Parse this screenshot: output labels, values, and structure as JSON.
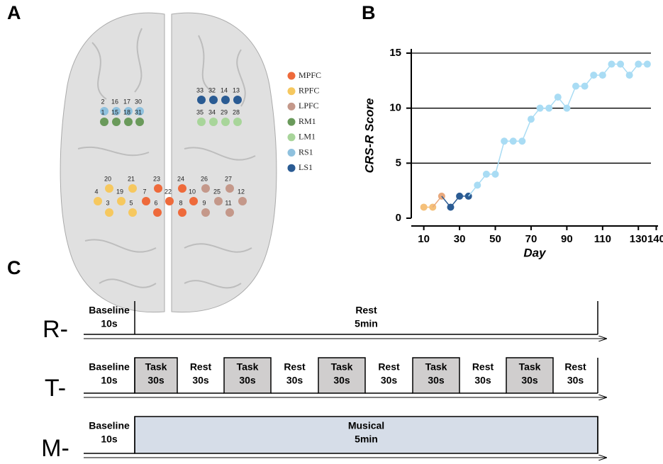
{
  "panels": {
    "a": "A",
    "b": "B",
    "c": "C"
  },
  "brain": {
    "legend": [
      {
        "name": "MPFC",
        "color": "#ee6a3b"
      },
      {
        "name": "RPFC",
        "color": "#f6c85f"
      },
      {
        "name": "LPFC",
        "color": "#c4988a"
      },
      {
        "name": "RM1",
        "color": "#6a9a5b"
      },
      {
        "name": "LM1",
        "color": "#a8d59a"
      },
      {
        "name": "RS1",
        "color": "#8fc1de"
      },
      {
        "name": "LS1",
        "color": "#2a5b93"
      }
    ],
    "channels": [
      {
        "label": "2",
        "region": "RS1"
      },
      {
        "label": "16",
        "region": "RS1"
      },
      {
        "label": "17",
        "region": "RS1"
      },
      {
        "label": "30",
        "region": "RS1"
      },
      {
        "label": "1",
        "region": "RM1"
      },
      {
        "label": "15",
        "region": "RM1"
      },
      {
        "label": "18",
        "region": "RM1"
      },
      {
        "label": "31",
        "region": "RM1"
      },
      {
        "label": "33",
        "region": "LS1"
      },
      {
        "label": "32",
        "region": "LS1"
      },
      {
        "label": "14",
        "region": "LS1"
      },
      {
        "label": "13",
        "region": "LS1"
      },
      {
        "label": "35",
        "region": "LM1"
      },
      {
        "label": "34",
        "region": "LM1"
      },
      {
        "label": "29",
        "region": "LM1"
      },
      {
        "label": "28",
        "region": "LM1"
      },
      {
        "label": "20",
        "region": "RPFC"
      },
      {
        "label": "21",
        "region": "RPFC"
      },
      {
        "label": "4",
        "region": "RPFC"
      },
      {
        "label": "19",
        "region": "RPFC"
      },
      {
        "label": "3",
        "region": "RPFC"
      },
      {
        "label": "5",
        "region": "RPFC"
      },
      {
        "label": "23",
        "region": "MPFC"
      },
      {
        "label": "24",
        "region": "MPFC"
      },
      {
        "label": "7",
        "region": "MPFC"
      },
      {
        "label": "22",
        "region": "MPFC"
      },
      {
        "label": "10",
        "region": "MPFC"
      },
      {
        "label": "6",
        "region": "MPFC"
      },
      {
        "label": "8",
        "region": "MPFC"
      },
      {
        "label": "26",
        "region": "LPFC"
      },
      {
        "label": "27",
        "region": "LPFC"
      },
      {
        "label": "25",
        "region": "LPFC"
      },
      {
        "label": "12",
        "region": "LPFC"
      },
      {
        "label": "9",
        "region": "LPFC"
      },
      {
        "label": "11",
        "region": "LPFC"
      }
    ]
  },
  "chart_data": {
    "type": "line",
    "x_label": "Day",
    "y_label": "CRS-R Score",
    "xlim": [
      3,
      141
    ],
    "xticks": [
      10,
      30,
      50,
      70,
      90,
      110,
      130,
      140
    ],
    "ylim": [
      0,
      15
    ],
    "yticks": [
      0,
      5,
      10,
      15
    ],
    "grid": true,
    "series": [
      {
        "color": "#f5c07a",
        "x": [
          10,
          15
        ],
        "values": [
          1,
          1
        ]
      },
      {
        "color": "#e8a87c",
        "x": [
          20
        ],
        "values": [
          2
        ]
      },
      {
        "color": "#2a5b93",
        "x": [
          25,
          30,
          35
        ],
        "values": [
          1,
          2,
          2
        ]
      },
      {
        "color": "#a9dcf4",
        "x": [
          40,
          45,
          50,
          55,
          60,
          65,
          70,
          75,
          80,
          85,
          90,
          95,
          100,
          105,
          110,
          115,
          120,
          125,
          130,
          135
        ],
        "values": [
          3,
          4,
          4,
          7,
          7,
          7,
          9,
          10,
          10,
          11,
          10,
          12,
          12,
          13,
          13,
          14,
          14,
          13,
          14,
          14
        ]
      }
    ]
  },
  "timeline": {
    "rows": [
      {
        "label": "R-",
        "segments": [
          {
            "name": "Baseline",
            "duration": "10s"
          },
          {
            "name": "Rest",
            "duration": "5min"
          }
        ]
      },
      {
        "label": "T-",
        "segments": [
          {
            "name": "Baseline",
            "duration": "10s"
          },
          {
            "name": "Task",
            "duration": "30s"
          },
          {
            "name": "Rest",
            "duration": "30s"
          },
          {
            "name": "Task",
            "duration": "30s"
          },
          {
            "name": "Rest",
            "duration": "30s"
          },
          {
            "name": "Task",
            "duration": "30s"
          },
          {
            "name": "Rest",
            "duration": "30s"
          },
          {
            "name": "Task",
            "duration": "30s"
          },
          {
            "name": "Rest",
            "duration": "30s"
          },
          {
            "name": "Task",
            "duration": "30s"
          },
          {
            "name": "Rest",
            "duration": "30s"
          }
        ]
      },
      {
        "label": "M-",
        "segments": [
          {
            "name": "Baseline",
            "duration": "10s"
          },
          {
            "name": "Musical",
            "duration": "5min"
          }
        ]
      }
    ]
  }
}
